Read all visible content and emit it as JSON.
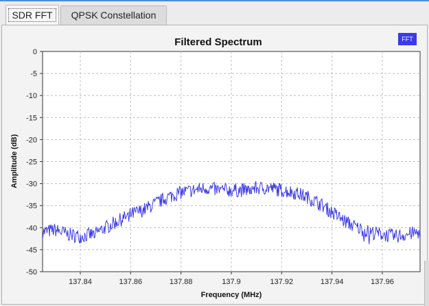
{
  "tabs": [
    {
      "label": "SDR FFT",
      "active": true
    },
    {
      "label": "QPSK Constellation",
      "active": false
    }
  ],
  "legend": {
    "label": "FFT",
    "color": "#3a3ae8"
  },
  "chart_data": {
    "type": "line",
    "title": "Filtered Spectrum",
    "xlabel": "Frequency (MHz)",
    "ylabel": "Amplitude (dB)",
    "xlim": [
      137.825,
      137.975
    ],
    "ylim": [
      -50,
      0
    ],
    "xticks": [
      137.84,
      137.86,
      137.88,
      137.9,
      137.92,
      137.94,
      137.96
    ],
    "xtick_labels": [
      "137.84",
      "137.86",
      "137.88",
      "137.9",
      "137.92",
      "137.94",
      "137.96"
    ],
    "yticks": [
      0,
      -5,
      -10,
      -15,
      -20,
      -25,
      -30,
      -35,
      -40,
      -45,
      -50
    ],
    "ytick_labels": [
      "0",
      "-5",
      "-10",
      "-15",
      "-20",
      "-25",
      "-30",
      "-35",
      "-40",
      "-45",
      "-50"
    ],
    "grid": true,
    "series": [
      {
        "name": "FFT",
        "color": "#3a3ae8",
        "x": [
          137.825,
          137.83,
          137.835,
          137.84,
          137.845,
          137.85,
          137.855,
          137.86,
          137.865,
          137.87,
          137.875,
          137.88,
          137.885,
          137.89,
          137.895,
          137.9,
          137.905,
          137.91,
          137.915,
          137.92,
          137.925,
          137.93,
          137.935,
          137.94,
          137.945,
          137.95,
          137.955,
          137.96,
          137.965,
          137.97,
          137.975
        ],
        "y": [
          -41,
          -40.5,
          -41.5,
          -42,
          -41.5,
          -40,
          -38.5,
          -37,
          -36,
          -34.5,
          -33,
          -32,
          -31.5,
          -31,
          -31.5,
          -31.5,
          -31.5,
          -31,
          -31,
          -31.5,
          -32,
          -33,
          -34.5,
          -36.5,
          -38.5,
          -40,
          -41,
          -41.5,
          -42,
          -41.5,
          -41
        ]
      }
    ]
  }
}
